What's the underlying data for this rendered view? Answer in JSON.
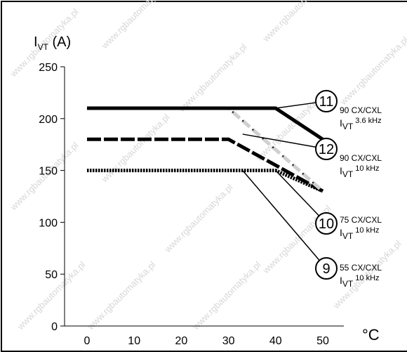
{
  "chart_data": {
    "type": "line",
    "ylabel_main": "I",
    "ylabel_sub": "VT",
    "ylabel_unit": "(A)",
    "xunit": "°C",
    "x_ticks": [
      0,
      10,
      20,
      30,
      40,
      50
    ],
    "y_ticks": [
      0,
      50,
      100,
      150,
      200,
      250
    ],
    "xlim": [
      0,
      50
    ],
    "ylim": [
      0,
      250
    ],
    "grid": false,
    "series": [
      {
        "id": "11",
        "model": "90 CX/CXL",
        "sub_label": "VT",
        "freq": "3.6 kHz",
        "color": "#000000",
        "style": "solid-thick",
        "x": [
          0,
          30,
          40,
          50
        ],
        "y": [
          210,
          210,
          210,
          180
        ]
      },
      {
        "id": "12",
        "model": "90 CX/CXL",
        "sub_label": "VT",
        "freq": "10 kHz",
        "color": "#cfcfcf",
        "style": "dashed-gray",
        "x": [
          0,
          30,
          50
        ],
        "y": [
          210,
          210,
          130
        ]
      },
      {
        "id": "10",
        "model": "75 CX/CXL",
        "sub_label": "VT",
        "freq": "10 kHz",
        "color": "#000000",
        "style": "long-dash",
        "x": [
          0,
          30,
          50
        ],
        "y": [
          180,
          180,
          130
        ]
      },
      {
        "id": "9",
        "model": "55 CX/CXL",
        "sub_label": "VT",
        "freq": "10 kHz",
        "color": "#000000",
        "style": "dotted",
        "x": [
          0,
          40,
          50
        ],
        "y": [
          150,
          150,
          130
        ]
      }
    ]
  },
  "watermark": "www.rgbautomatyka.pl"
}
